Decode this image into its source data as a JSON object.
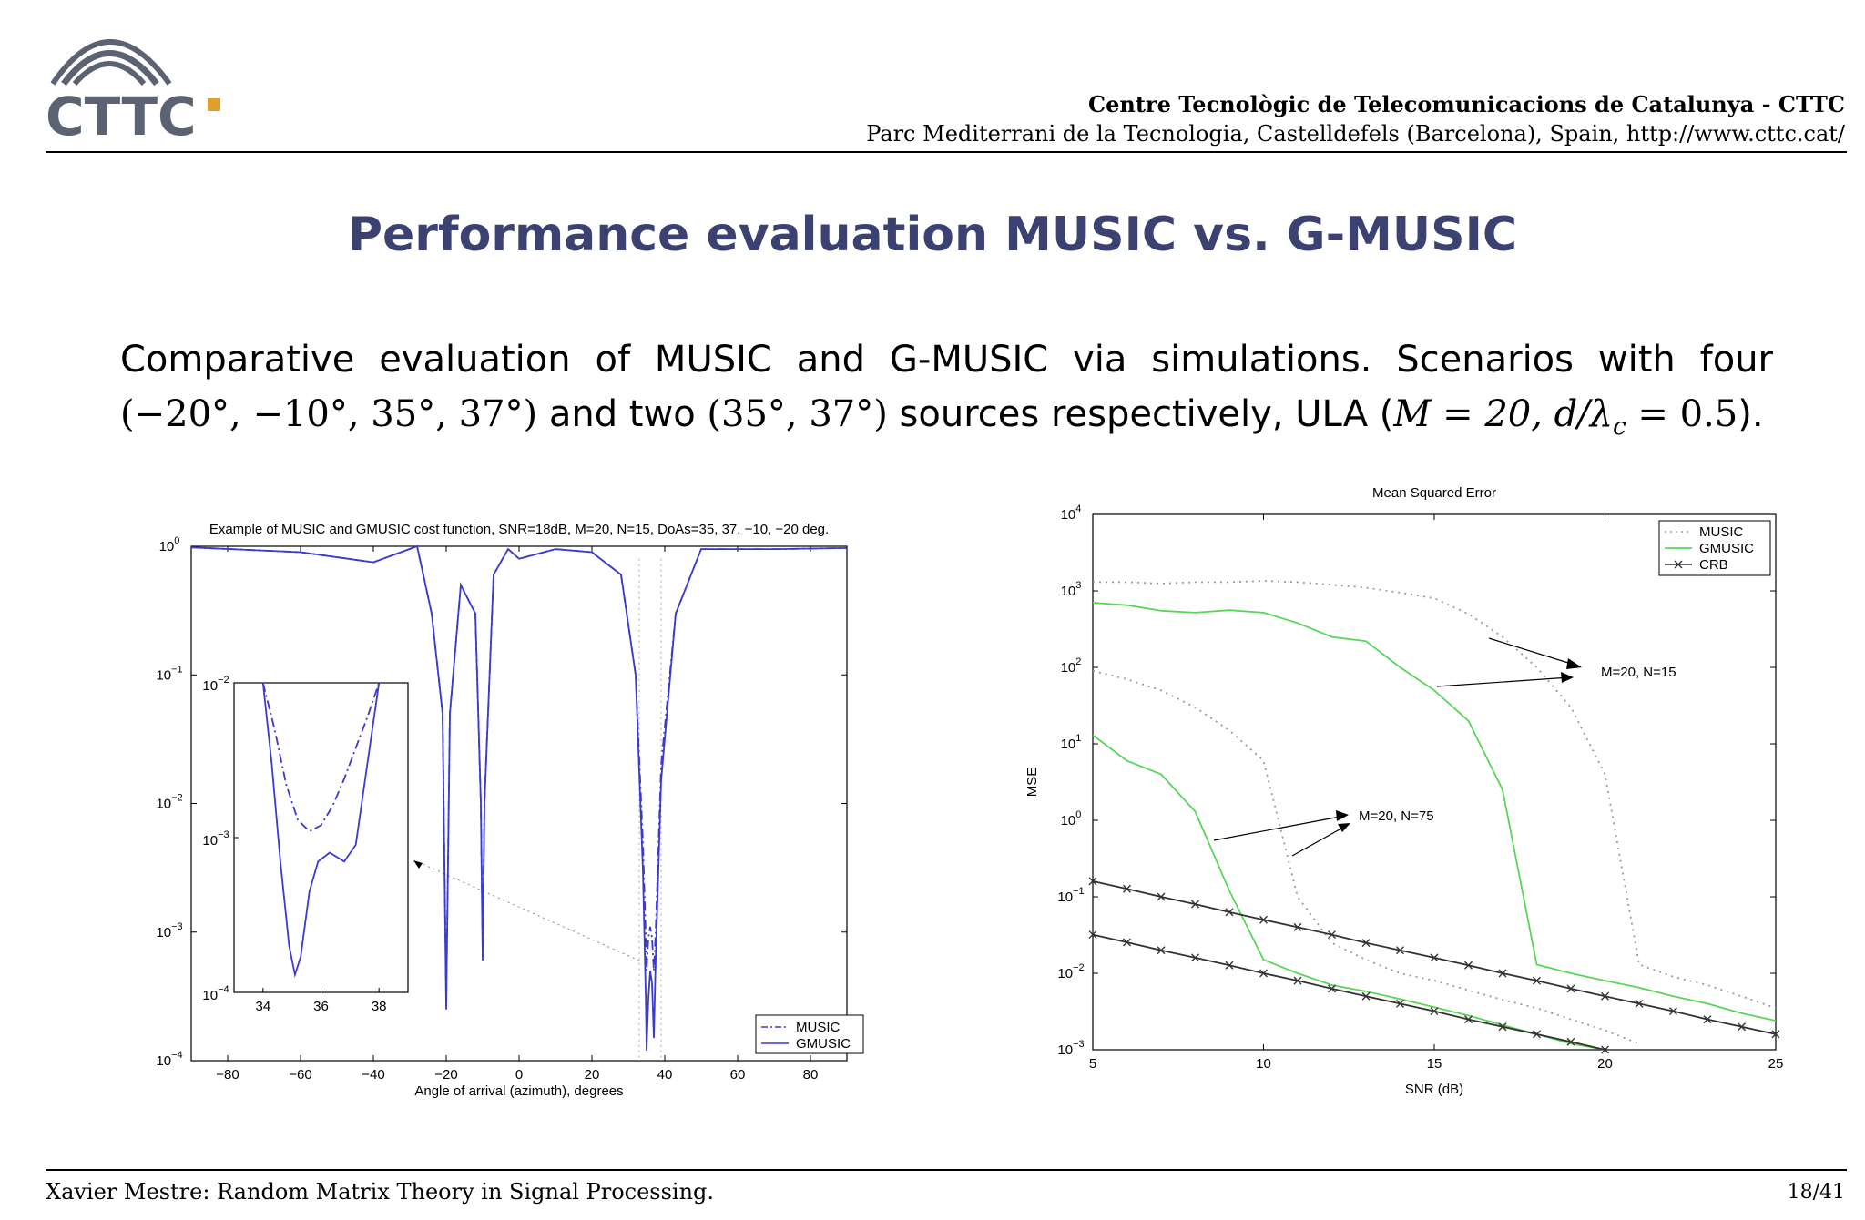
{
  "header": {
    "logo_text": "CTTC",
    "organization": "Centre Tecnològic de Telecomunicacions de Catalunya - CTTC",
    "address": "Parc Mediterrani de la Tecnologia, Castelldefels (Barcelona), Spain, http://www.cttc.cat/"
  },
  "slide": {
    "title": "Performance evaluation MUSIC vs. G-MUSIC",
    "body_line1": "Comparative evaluation of MUSIC and G-MUSIC via simulations. Scenarios with four",
    "body_line2_a": "(−20°, −10°, 35°, 37°)",
    "body_line2_b": " and two ",
    "body_line2_c": "(35°, 37°)",
    "body_line2_d": " sources respectively, ULA (",
    "body_line2_e": "M = 20, d/λ",
    "body_line2_sub": "c",
    "body_line2_f": " = 0.5",
    "body_line2_g": ")."
  },
  "footer": {
    "left": "Xavier Mestre: Random Matrix Theory in Signal Processing.",
    "right": "18/41"
  },
  "colors": {
    "title": "#3b4170",
    "gmusic_left": "#3a3ad0",
    "gmusic_right": "#59d659",
    "music": "#9a9a9a",
    "crb": "#333333"
  },
  "chart_data": [
    {
      "type": "line",
      "title": "Example of MUSIC and GMUSIC cost function, SNR=18dB, M=20, N=15, DoAs=35, 37, −10, −20 deg.",
      "xlabel": "Angle of arrival (azimuth), degrees",
      "ylabel": "",
      "xlim": [
        -90,
        90
      ],
      "ylim": [
        0.0001,
        1
      ],
      "yscale": "log",
      "x_ticks": [
        "−80",
        "−60",
        "−40",
        "−20",
        "0",
        "20",
        "40",
        "60",
        "80"
      ],
      "y_ticks": [
        "10",
        "10",
        "10",
        "10",
        "10"
      ],
      "y_tick_exps": [
        "0",
        "−1",
        "−2",
        "−3",
        "−4"
      ],
      "legend": {
        "position": "bottom-right",
        "entries": [
          "MUSIC",
          "GMUSIC"
        ]
      },
      "series": [
        {
          "name": "MUSIC",
          "style": "dash-dot",
          "x": [
            -90,
            -60,
            -40,
            -28,
            -24,
            -21,
            -20,
            -19,
            -16,
            -12,
            -10.5,
            -10,
            -9.5,
            -7,
            -3,
            0,
            10,
            20,
            28,
            32,
            34,
            34.8,
            35,
            35.5,
            36,
            36.5,
            37,
            37.5,
            39,
            43,
            50,
            70,
            90
          ],
          "y": [
            0.98,
            0.9,
            0.75,
            1.0,
            0.3,
            0.05,
            0.0003,
            0.05,
            0.5,
            0.3,
            0.01,
            0.0007,
            0.01,
            0.6,
            0.95,
            0.8,
            0.95,
            0.9,
            0.6,
            0.1,
            0.005,
            0.0009,
            0.0005,
            0.0009,
            0.0011,
            0.0009,
            0.0005,
            0.001,
            0.02,
            0.3,
            0.95,
            0.95,
            0.97
          ]
        },
        {
          "name": "GMUSIC",
          "style": "solid",
          "x": [
            -90,
            -60,
            -40,
            -28,
            -24,
            -21,
            -20,
            -19,
            -16,
            -12,
            -10.5,
            -10,
            -9.5,
            -7,
            -3,
            0,
            10,
            20,
            28,
            32,
            34,
            34.8,
            35,
            35.5,
            36,
            36.5,
            37,
            37.5,
            39,
            43,
            50,
            70,
            90
          ],
          "y": [
            0.98,
            0.9,
            0.75,
            1.0,
            0.3,
            0.05,
            0.00025,
            0.05,
            0.5,
            0.3,
            0.01,
            0.0006,
            0.01,
            0.6,
            0.95,
            0.8,
            0.95,
            0.9,
            0.6,
            0.1,
            0.003,
            0.0003,
            0.00012,
            0.0003,
            0.0005,
            0.0004,
            0.00015,
            0.0006,
            0.015,
            0.3,
            0.95,
            0.95,
            0.97
          ]
        }
      ],
      "inset": {
        "xlim": [
          33,
          39
        ],
        "ylim": [
          0.0001,
          0.01
        ],
        "x_ticks": [
          "34",
          "36",
          "38"
        ],
        "y_ticks": [
          "10",
          "10",
          "10"
        ],
        "y_tick_exps": [
          "−2",
          "−3",
          "−4"
        ],
        "series": [
          {
            "name": "MUSIC",
            "style": "dash-dot",
            "x": [
              34,
              34.4,
              34.8,
              35.2,
              35.6,
              36.0,
              36.4,
              36.8,
              37.2,
              37.6,
              38.0
            ],
            "y": [
              0.01,
              0.005,
              0.0022,
              0.0013,
              0.0011,
              0.0012,
              0.0016,
              0.0024,
              0.0038,
              0.006,
              0.01
            ]
          },
          {
            "name": "GMUSIC",
            "style": "solid",
            "x": [
              34,
              34.3,
              34.6,
              34.9,
              35.1,
              35.3,
              35.6,
              35.9,
              36.3,
              36.8,
              37.2,
              37.6,
              38.0
            ],
            "y": [
              0.01,
              0.003,
              0.0007,
              0.0002,
              0.00013,
              0.00017,
              0.00045,
              0.0007,
              0.0008,
              0.0007,
              0.0009,
              0.003,
              0.01
            ]
          }
        ]
      }
    },
    {
      "type": "line",
      "title": "Mean Squared Error",
      "xlabel": "SNR (dB)",
      "ylabel": "MSE",
      "xlim": [
        5,
        25
      ],
      "ylim": [
        0.001,
        10000
      ],
      "yscale": "log",
      "x_ticks": [
        "5",
        "10",
        "15",
        "20",
        "25"
      ],
      "y_ticks": [
        "10",
        "10",
        "10",
        "10",
        "10",
        "10",
        "10",
        "10"
      ],
      "y_tick_exps": [
        "4",
        "3",
        "2",
        "1",
        "0",
        "−1",
        "−2",
        "−3"
      ],
      "legend": {
        "position": "top-right",
        "entries": [
          "MUSIC",
          "GMUSIC",
          "CRB"
        ]
      },
      "annotations": [
        "M=20, N=15",
        "M=20, N=75"
      ],
      "series": [
        {
          "name": "MUSIC",
          "group": "M=20, N=15",
          "style": "dotted",
          "x": [
            5,
            6,
            7,
            8,
            9,
            10,
            11,
            12,
            13,
            14,
            15,
            16,
            17,
            18,
            19,
            20,
            21,
            22,
            23,
            24,
            25
          ],
          "y": [
            1300,
            1300,
            1250,
            1300,
            1300,
            1350,
            1300,
            1200,
            1100,
            950,
            800,
            500,
            250,
            100,
            30,
            4,
            0.013,
            0.009,
            0.007,
            0.005,
            0.0035
          ]
        },
        {
          "name": "GMUSIC",
          "group": "M=20, N=15",
          "style": "solid",
          "x": [
            5,
            6,
            7,
            8,
            9,
            10,
            11,
            12,
            13,
            14,
            15,
            16,
            17,
            18,
            19,
            20,
            21,
            22,
            23,
            24,
            25
          ],
          "y": [
            700,
            650,
            550,
            520,
            560,
            520,
            380,
            250,
            220,
            100,
            50,
            20,
            2.5,
            0.013,
            0.01,
            0.008,
            0.0065,
            0.005,
            0.004,
            0.003,
            0.0024
          ]
        },
        {
          "name": "MUSIC",
          "group": "M=20, N=75",
          "style": "dotted",
          "x": [
            5,
            6,
            7,
            8,
            9,
            10,
            11,
            12,
            13,
            14,
            15,
            16,
            17,
            18,
            19,
            20,
            21
          ],
          "y": [
            90,
            70,
            50,
            30,
            15,
            6,
            0.1,
            0.025,
            0.015,
            0.01,
            0.008,
            0.006,
            0.0045,
            0.0035,
            0.0025,
            0.0018,
            0.0012
          ]
        },
        {
          "name": "GMUSIC",
          "group": "M=20, N=75",
          "style": "solid",
          "x": [
            5,
            6,
            7,
            8,
            9,
            10,
            11,
            12,
            13,
            14,
            15,
            16,
            17,
            18,
            19,
            20
          ],
          "y": [
            13,
            6,
            4,
            1.3,
            0.12,
            0.015,
            0.01,
            0.007,
            0.0058,
            0.0046,
            0.0036,
            0.0028,
            0.0021,
            0.0016,
            0.0012,
            0.001
          ]
        },
        {
          "name": "CRB",
          "group": "M=20, N=15",
          "style": "solid-x",
          "x": [
            5,
            6,
            7,
            8,
            9,
            10,
            11,
            12,
            13,
            14,
            15,
            16,
            17,
            18,
            19,
            20,
            21,
            22,
            23,
            24,
            25
          ],
          "y": [
            0.16,
            0.127,
            0.1,
            0.08,
            0.063,
            0.05,
            0.04,
            0.032,
            0.025,
            0.02,
            0.016,
            0.0127,
            0.01,
            0.008,
            0.0063,
            0.005,
            0.004,
            0.0032,
            0.0025,
            0.002,
            0.0016
          ]
        },
        {
          "name": "CRB",
          "group": "M=20, N=75",
          "style": "solid-x",
          "x": [
            5,
            6,
            7,
            8,
            9,
            10,
            11,
            12,
            13,
            14,
            15,
            16,
            17,
            18,
            19,
            20
          ],
          "y": [
            0.032,
            0.0254,
            0.02,
            0.016,
            0.0127,
            0.01,
            0.008,
            0.0063,
            0.005,
            0.004,
            0.0032,
            0.0025,
            0.002,
            0.0016,
            0.00127,
            0.001
          ]
        }
      ]
    }
  ]
}
